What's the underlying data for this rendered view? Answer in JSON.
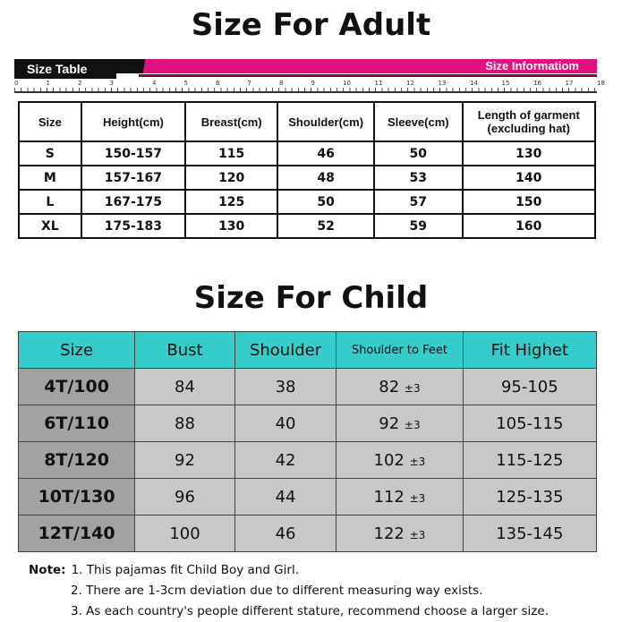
{
  "adult": {
    "title": "Size For Adult",
    "size_table_label": "Size Table",
    "size_info_label": "Size Informatiom",
    "ruler_ticks": [
      "0",
      "1",
      "2",
      "3",
      "4",
      "5",
      "6",
      "7",
      "8",
      "9",
      "10",
      "11",
      "12",
      "13",
      "14",
      "15",
      "16",
      "17",
      "18"
    ],
    "headers": [
      "Size",
      "Height(cm)",
      "Breast(cm)",
      "Shoulder(cm)",
      "Sleeve(cm)",
      "Length of garment (excluding hat)"
    ],
    "rows": [
      [
        "S",
        "150-157",
        "115",
        "46",
        "50",
        "130"
      ],
      [
        "M",
        "157-167",
        "120",
        "48",
        "53",
        "140"
      ],
      [
        "L",
        "167-175",
        "125",
        "50",
        "57",
        "150"
      ],
      [
        "XL",
        "175-183",
        "130",
        "52",
        "59",
        "160"
      ]
    ]
  },
  "child": {
    "title": "Size For Child",
    "headers": [
      "Size",
      "Bust",
      "Shoulder",
      "Shoulder to Feet",
      "Fit Highet"
    ],
    "tolerance": "±3",
    "rows": [
      [
        "4T/100",
        "84",
        "38",
        "82",
        "95-105"
      ],
      [
        "6T/110",
        "88",
        "40",
        "92",
        "105-115"
      ],
      [
        "8T/120",
        "92",
        "42",
        "102",
        "115-125"
      ],
      [
        "10T/130",
        "96",
        "44",
        "112",
        "125-135"
      ],
      [
        "12T/140",
        "100",
        "46",
        "122",
        "135-145"
      ]
    ]
  },
  "notes": {
    "label": "Note:",
    "items": [
      "1. This pajamas fit Child Boy and Girl.",
      "2. There are 1-3cm deviation due to different measuring way exists.",
      "3. As each country's people different stature, recommend choose a larger size."
    ]
  },
  "colors": {
    "pink": "#e0117e",
    "teal": "#35cccc",
    "size_cell": "#a2a2a2",
    "cell": "#c8c8c8"
  }
}
